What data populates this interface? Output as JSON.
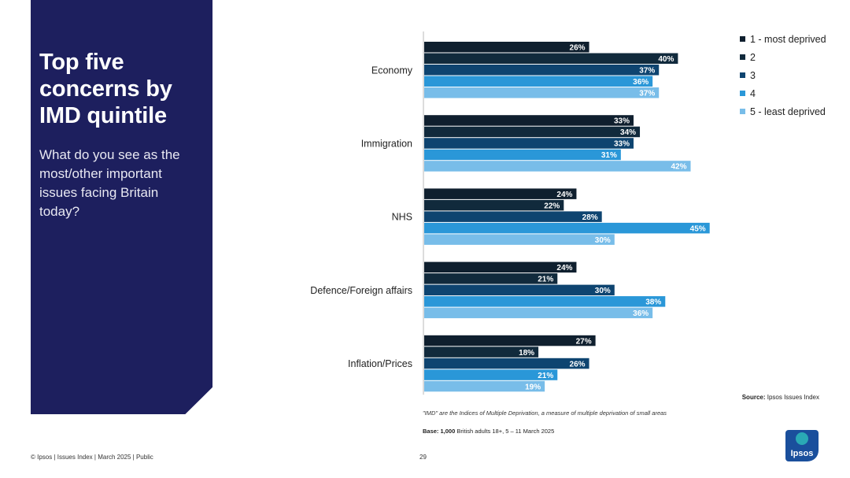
{
  "panel": {
    "title": "Top five concerns by IMD quintile",
    "question": "What do you see as the most/other important issues facing Britain today?"
  },
  "chart_data": {
    "type": "bar",
    "orientation": "horizontal",
    "categories": [
      "Economy",
      "Immigration",
      "NHS",
      "Defence/Foreign affairs",
      "Inflation/Prices"
    ],
    "series": [
      {
        "name": "1 - most deprived",
        "color": "#0f1f2e",
        "values": [
          26,
          33,
          24,
          24,
          27
        ]
      },
      {
        "name": "2",
        "color": "#112a3c",
        "values": [
          40,
          34,
          22,
          21,
          18
        ]
      },
      {
        "name": "3",
        "color": "#0e4470",
        "values": [
          37,
          33,
          28,
          30,
          26
        ]
      },
      {
        "name": "4",
        "color": "#2a97d8",
        "values": [
          36,
          31,
          45,
          38,
          21
        ]
      },
      {
        "name": "5 - least deprived",
        "color": "#78bde9",
        "values": [
          37,
          42,
          30,
          36,
          19
        ]
      }
    ],
    "value_format": "percent",
    "xlim": [
      0,
      70
    ],
    "legend_position": "top-right"
  },
  "legend_title": "",
  "source": {
    "label": "Source:",
    "text": " Ipsos Issues Index"
  },
  "footnote": "\"IMD\" are the Indices of Multiple Deprivation, a measure of multiple deprivation of small areas",
  "base": {
    "label": "Base: 1,000",
    "text": " British adults 18+, 5 – 11 March 2025"
  },
  "footer": {
    "left": "© Ipsos | Issues Index | March 2025 | Public",
    "page": "29"
  },
  "logo": {
    "text": "Ipsos"
  }
}
